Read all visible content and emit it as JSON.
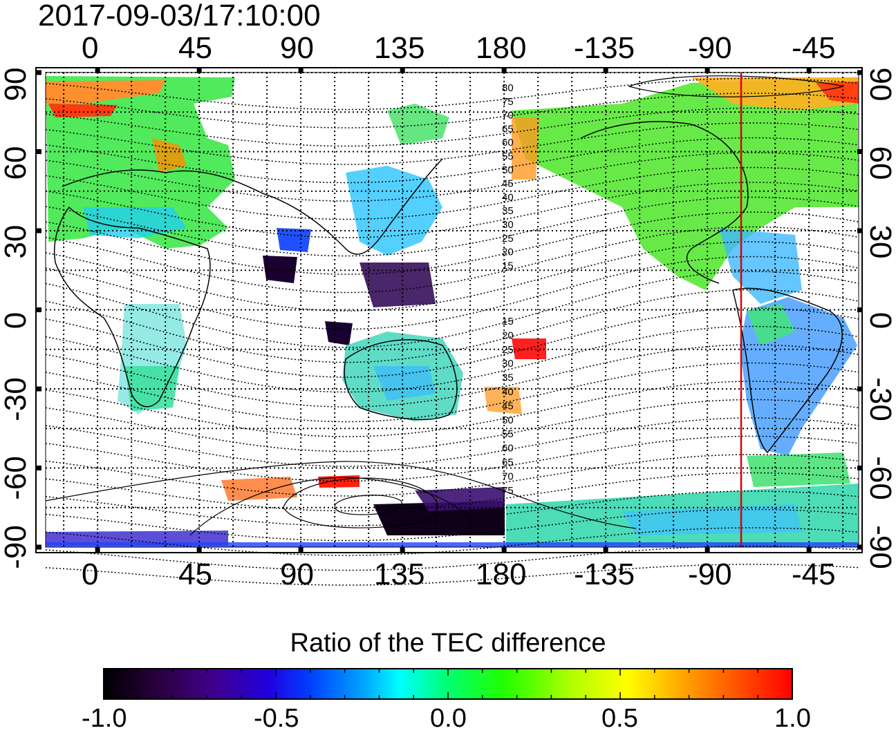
{
  "map": {
    "timestamp": "2017-09-03/17:10:00",
    "colorbar_title": "Ratio of the TEC difference",
    "colorbar_ticks": [
      "-1.0",
      "-0.5",
      "0.0",
      "0.5",
      "1.0"
    ],
    "top_lon_labels": [
      "0",
      "45",
      "90",
      "135",
      "180",
      "-135",
      "-90",
      "-45"
    ],
    "bottom_lon_labels": [
      "0",
      "45",
      "90",
      "135",
      "180",
      "-135",
      "-90",
      "-45"
    ],
    "left_lat_labels": [
      "90",
      "60",
      "30",
      "0",
      "-30",
      "-60",
      "-90"
    ],
    "right_lat_labels": [
      "90",
      "60",
      "30",
      "0",
      "-30",
      "-60",
      "-90"
    ],
    "contour_labels_north": [
      "80",
      "75",
      "70",
      "65",
      "60",
      "55",
      "50",
      "45",
      "40",
      "35",
      "30",
      "25",
      "20",
      "15"
    ],
    "contour_labels_south": [
      "15",
      "20",
      "25",
      "30",
      "35",
      "40",
      "45",
      "50",
      "55",
      "60",
      "65",
      "70",
      "75"
    ],
    "marker_line_color": "#e00000",
    "colormap": [
      "#000000",
      "#2a0040",
      "#3a0090",
      "#0000ff",
      "#00a0ff",
      "#00ffff",
      "#00ff80",
      "#00ff00",
      "#c0ff00",
      "#ffff00",
      "#ff8000",
      "#ff0000"
    ]
  }
}
